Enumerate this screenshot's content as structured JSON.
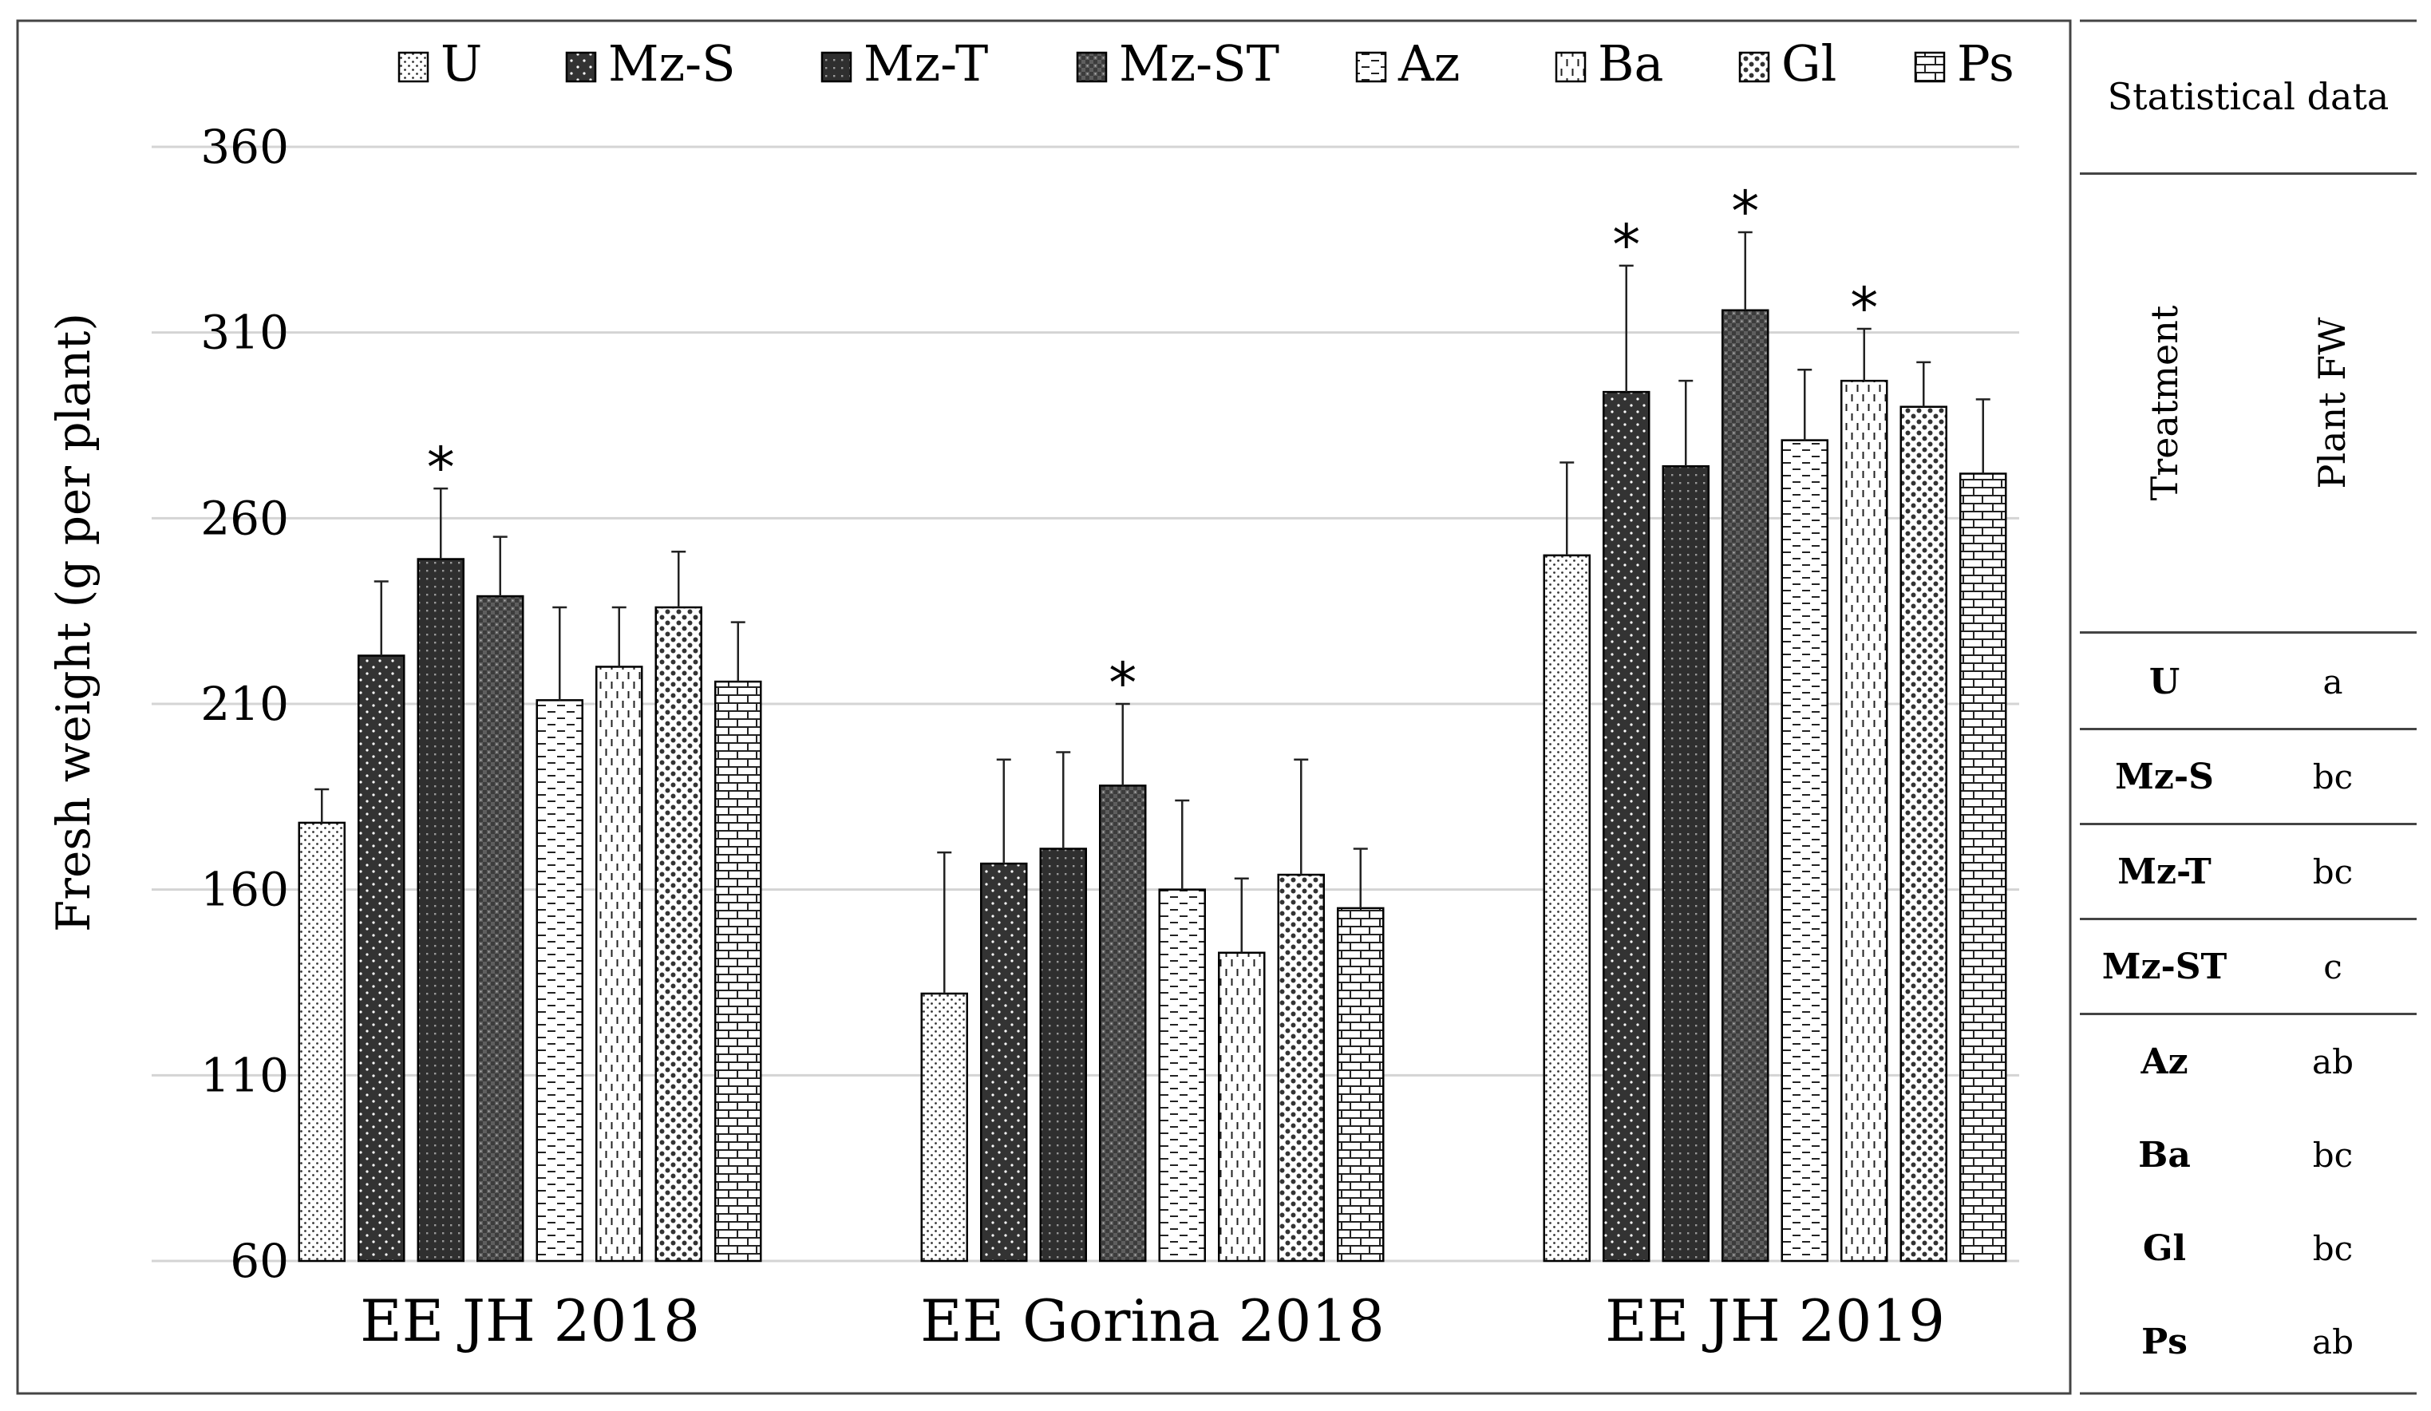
{
  "chart_data": {
    "type": "bar",
    "title": "",
    "xlabel": "",
    "ylabel": "Fresh weight (g per plant)",
    "ylim": [
      60,
      360
    ],
    "yticks": [
      "60",
      "110",
      "160",
      "210",
      "260",
      "310",
      "360"
    ],
    "grid": true,
    "legend_position": "top",
    "categories": [
      "EE JH 2018",
      "EE Gorina 2018",
      "EE JH 2019"
    ],
    "series": [
      {
        "name": "U",
        "pattern": "fine-dots",
        "values": [
          178,
          132,
          250
        ],
        "errors": [
          9,
          38,
          25
        ],
        "significant": [
          false,
          false,
          false
        ]
      },
      {
        "name": "Mz-S",
        "pattern": "dark-dots",
        "values": [
          223,
          167,
          294
        ],
        "errors": [
          20,
          28,
          34
        ],
        "significant": [
          false,
          false,
          true
        ]
      },
      {
        "name": "Mz-T",
        "pattern": "dark-grid",
        "values": [
          249,
          171,
          274
        ],
        "errors": [
          19,
          26,
          23
        ],
        "significant": [
          true,
          false,
          false
        ]
      },
      {
        "name": "Mz-ST",
        "pattern": "dark-checks",
        "values": [
          239,
          188,
          316
        ],
        "errors": [
          16,
          22,
          21
        ],
        "significant": [
          false,
          true,
          true
        ]
      },
      {
        "name": "Az",
        "pattern": "dashes",
        "values": [
          211,
          160,
          281
        ],
        "errors": [
          25,
          24,
          19
        ],
        "significant": [
          false,
          false,
          false
        ]
      },
      {
        "name": "Ba",
        "pattern": "vert-dashes",
        "values": [
          220,
          143,
          297
        ],
        "errors": [
          16,
          20,
          14
        ],
        "significant": [
          false,
          false,
          true
        ]
      },
      {
        "name": "Gl",
        "pattern": "big-dots",
        "values": [
          236,
          164,
          290
        ],
        "errors": [
          15,
          31,
          12
        ],
        "significant": [
          false,
          false,
          false
        ]
      },
      {
        "name": "Ps",
        "pattern": "bricks",
        "values": [
          216,
          155,
          272
        ],
        "errors": [
          16,
          16,
          20
        ],
        "significant": [
          false,
          false,
          false
        ]
      }
    ],
    "significance_marker": "*"
  },
  "stats_table": {
    "title": "Statistical data",
    "col_treatment": "Treatment",
    "col_fw": "Plant FW",
    "rows": [
      {
        "treatment": "U",
        "letter": "a"
      },
      {
        "treatment": "Mz-S",
        "letter": "bc"
      },
      {
        "treatment": "Mz-T",
        "letter": "bc"
      },
      {
        "treatment": "Mz-ST",
        "letter": "c"
      },
      {
        "treatment": "Az",
        "letter": "ab"
      },
      {
        "treatment": "Ba",
        "letter": "bc"
      },
      {
        "treatment": "Gl",
        "letter": "bc"
      },
      {
        "treatment": "Ps",
        "letter": "ab"
      }
    ]
  }
}
